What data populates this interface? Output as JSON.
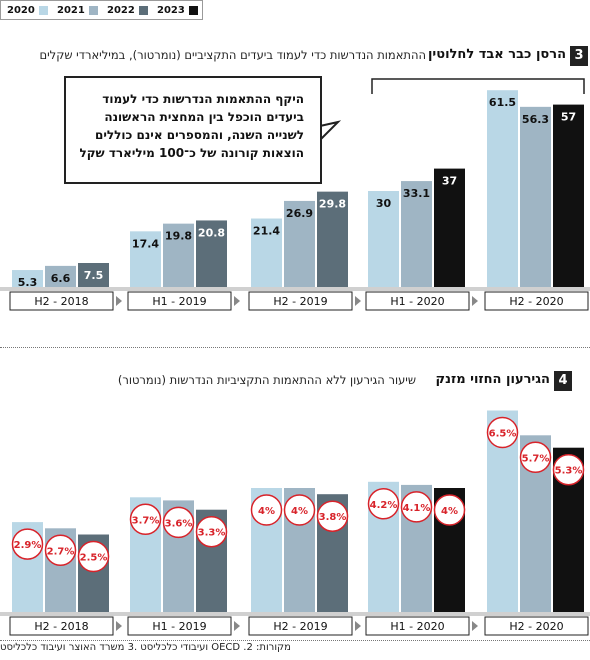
{
  "legend": [
    {
      "label": "2020",
      "color": "#b9d7e6"
    },
    {
      "label": "2021",
      "color": "#9fb5c4"
    },
    {
      "label": "2022",
      "color": "#5c6e79"
    },
    {
      "label": "2023",
      "color": "#111111"
    }
  ],
  "section3": {
    "number": "3",
    "title": "הרסן כבר אבד לחלוטין",
    "subtitle": "ההתאמות הנדרשות כדי לעמוד ביעדים התקציביים (נומרטור), במיליארדי שקלים",
    "callout": [
      "היקף ההתאמות הנדרשות כדי לעמוד",
      "ביעדים הוכפל בין המחצית הראשונה",
      "לשנייה השנה, והמספרים אינם כוללים",
      "הוצאות קורונה של כ־100 מיליארד שקל"
    ]
  },
  "section4": {
    "number": "4",
    "title": "הגירעון החזוי מזנק",
    "subtitle": "שיעור הגירעון ללא ההתאמות התקציביות הנדרשות (נומרטור)"
  },
  "source": "מקורות: OECD .2 ועיבודי כלכליסט .3 משרד האוצר ועיבוד כלכליסט",
  "chart_data": [
    {
      "type": "bar",
      "title": "הרסן כבר אבד לחלוטין",
      "categories": [
        "H2 - 2018",
        "H1 - 2019",
        "H2 - 2019",
        "H1 - 2020",
        "H2 - 2020"
      ],
      "series": [
        {
          "name": "2020",
          "color": "#b9d7e6",
          "values": [
            5.3,
            17.4,
            21.4,
            30,
            61.5
          ],
          "labels": [
            "5.3",
            "17.4",
            "21.4",
            "30",
            "61.5"
          ]
        },
        {
          "name": "2021",
          "color": "#9fb5c4",
          "values": [
            6.6,
            19.8,
            26.9,
            33.1,
            56.3
          ],
          "labels": [
            "6.6",
            "19.8",
            "26.9",
            "33.1",
            "56.3"
          ]
        },
        {
          "name": "2022",
          "color": "#5c6e79",
          "values": [
            7.5,
            20.8,
            29.8,
            null,
            null
          ],
          "labels": [
            "7.5",
            "20.8",
            "29.8",
            "",
            ""
          ]
        },
        {
          "name": "2023",
          "color": "#111111",
          "values": [
            null,
            null,
            null,
            37,
            57
          ],
          "labels": [
            "",
            "",
            "",
            "37",
            "57"
          ]
        }
      ],
      "ylim": [
        0,
        65
      ]
    },
    {
      "type": "bar",
      "title": "הגירעון החזוי מזנק",
      "categories": [
        "H2 - 2018",
        "H1 - 2019",
        "H2 - 2019",
        "H1 - 2020",
        "H2 - 2020"
      ],
      "series": [
        {
          "name": "2020",
          "color": "#b9d7e6",
          "values": [
            2.9,
            3.7,
            4.0,
            4.2,
            6.5
          ],
          "labels": [
            "2.9%",
            "3.7%",
            "4%",
            "4.2%",
            "6.5%"
          ]
        },
        {
          "name": "2021",
          "color": "#9fb5c4",
          "values": [
            2.7,
            3.6,
            4.0,
            4.1,
            5.7
          ],
          "labels": [
            "2.7%",
            "3.6%",
            "4%",
            "4.1%",
            "5.7%"
          ]
        },
        {
          "name": "2022",
          "color": "#5c6e79",
          "values": [
            2.5,
            3.3,
            3.8,
            null,
            null
          ],
          "labels": [
            "2.5%",
            "3.3%",
            "3.8%",
            "",
            ""
          ]
        },
        {
          "name": "2023",
          "color": "#111111",
          "values": [
            null,
            null,
            null,
            4.0,
            5.3
          ],
          "labels": [
            "",
            "",
            "",
            "4%",
            "5.3%"
          ]
        }
      ],
      "ylim": [
        0,
        7
      ]
    }
  ]
}
